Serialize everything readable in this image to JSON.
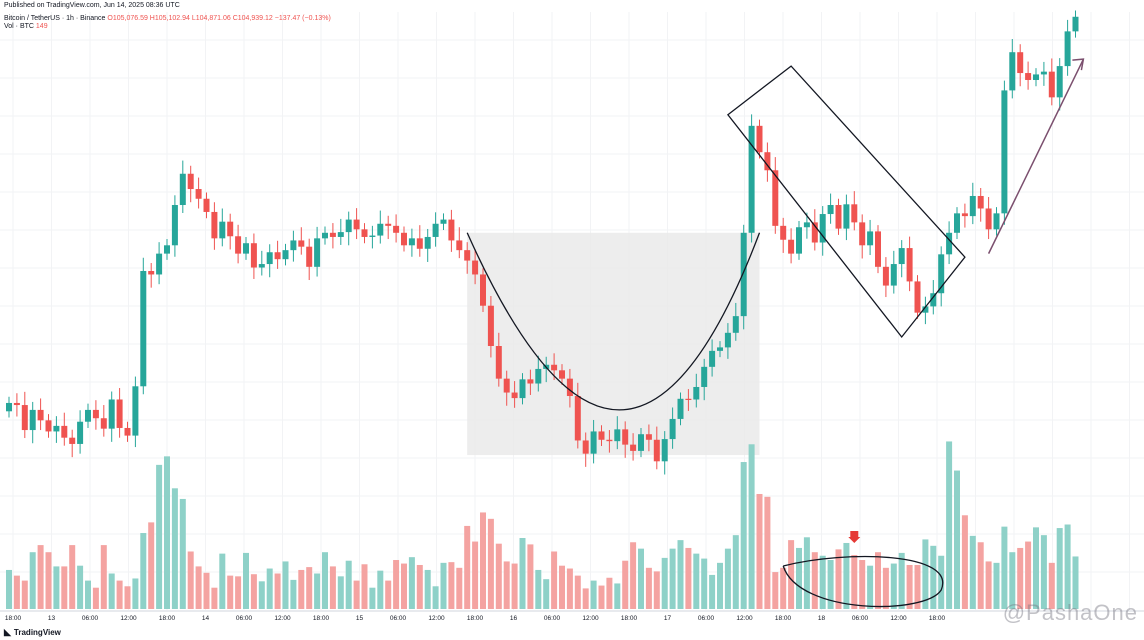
{
  "header": {
    "published": "Published on TradingView.com, Jun 14, 2025 08:36 UTC",
    "symbol": "Bitcoin / TetherUS · 1h · Binance",
    "ohlc": "O105,076.59 H105,102.94 L104,871.06 C104,939.12 −137.47 (−0.13%)",
    "volume_label": "Vol · BTC",
    "volume_value": "149"
  },
  "footer": {
    "brand": "TradingView",
    "watermark": "@PashaOne"
  },
  "colors": {
    "up": "#26a69a",
    "down": "#ef5350",
    "vol_up": "#8ed1c8",
    "vol_down": "#f4a3a1",
    "shade": "#e9e9e9",
    "arrow": "#7b4f6e"
  },
  "chart_data": {
    "type": "candlestick",
    "title": "",
    "xlabel": "",
    "ylabel": "",
    "x_tick_labels": [
      "18:00",
      "13",
      "06:00",
      "12:00",
      "18:00",
      "14",
      "06:00",
      "12:00",
      "18:00",
      "15",
      "06:00",
      "12:00",
      "18:00",
      "16",
      "06:00",
      "12:00",
      "18:00",
      "17",
      "06:00",
      "12:00",
      "18:00",
      "18",
      "06:00",
      "12:00",
      "18:00"
    ],
    "grid": true,
    "candle_closes": [
      104150,
      104120,
      103760,
      104050,
      103900,
      103740,
      103820,
      103650,
      103560,
      103880,
      104050,
      103930,
      103780,
      104200,
      103790,
      103680,
      104390,
      106050,
      106000,
      106300,
      106420,
      107000,
      107450,
      107230,
      107090,
      106900,
      106520,
      106760,
      106550,
      106300,
      106450,
      106100,
      106150,
      106320,
      106220,
      106350,
      106490,
      106400,
      106110,
      106520,
      106600,
      106540,
      106610,
      106790,
      106650,
      106540,
      106560,
      106730,
      106700,
      106600,
      106420,
      106520,
      106370,
      106540,
      106730,
      106790,
      106490,
      106350,
      106200,
      106000,
      105550,
      104970,
      104500,
      104300,
      104220,
      104490,
      104430,
      104640,
      104700,
      104620,
      104500,
      104250,
      103610,
      103420,
      103740,
      103620,
      103600,
      103770,
      103550,
      103460,
      103700,
      103620,
      103310,
      103630,
      103920,
      104210,
      104200,
      104380,
      104670,
      104900,
      104950,
      105160,
      105400,
      106600,
      108140,
      107760,
      107500,
      106700,
      106500,
      106300,
      106680,
      106750,
      106460,
      106870,
      107000,
      106660,
      107010,
      106750,
      106420,
      106620,
      106110,
      105840,
      106150,
      106380,
      105900,
      105450,
      105540,
      105730,
      106290,
      106600,
      106880,
      106840,
      107130,
      106950,
      106650,
      106880,
      108650,
      109200,
      108900,
      108800,
      108880,
      108920,
      108550,
      109000,
      109500,
      109710
    ],
    "volume": [
      55,
      47,
      40,
      80,
      90,
      80,
      60,
      60,
      90,
      61,
      40,
      30,
      90,
      50,
      40,
      32,
      43,
      107,
      122,
      203,
      215,
      170,
      155,
      81,
      60,
      51,
      30,
      78,
      47,
      46,
      79,
      49,
      39,
      57,
      50,
      67,
      41,
      55,
      59,
      50,
      80,
      60,
      46,
      68,
      40,
      63,
      30,
      54,
      40,
      69,
      64,
      73,
      62,
      55,
      32,
      65,
      66,
      58,
      117,
      95,
      136,
      127,
      92,
      67,
      64,
      100,
      91,
      55,
      42,
      81,
      61,
      57,
      47,
      29,
      40,
      33,
      44,
      36,
      68,
      94,
      85,
      58,
      53,
      72,
      85,
      97,
      86,
      78,
      71,
      48,
      65,
      85,
      104,
      207,
      232,
      162,
      158,
      52,
      58,
      97,
      86,
      101,
      80,
      75,
      69,
      84,
      93,
      76,
      69,
      61,
      80,
      58,
      64,
      79,
      62,
      62,
      98,
      89,
      75,
      236,
      195,
      132,
      103,
      94,
      67,
      65,
      116,
      80,
      86,
      95,
      115,
      104,
      65,
      114,
      119,
      74
    ],
    "volume_label_value": 149,
    "annotations": [
      "cup-and-handle",
      "descending-channel-handle",
      "breakout-arrow",
      "volume-dip-ellipse",
      "volume-marker-arrow"
    ]
  }
}
